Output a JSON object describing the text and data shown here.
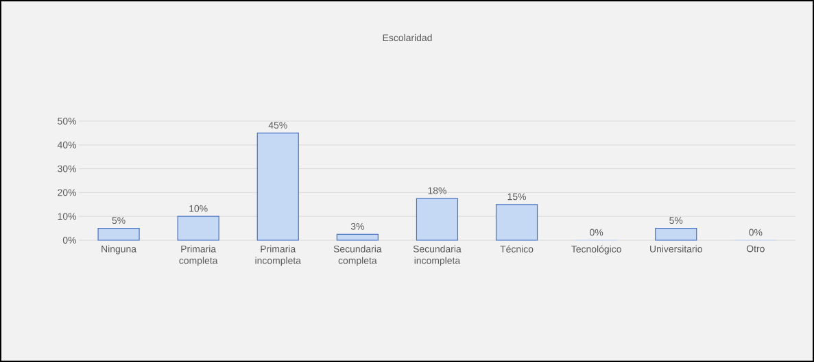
{
  "chart_data": {
    "type": "bar",
    "title": "Escolaridad",
    "categories": [
      "Ninguna",
      "Primaria completa",
      "Primaria incompleta",
      "Secundaria completa",
      "Secundaria incompleta",
      "Técnico",
      "Tecnológico",
      "Universitario",
      "Otro"
    ],
    "values": [
      5,
      10,
      45,
      2.5,
      17.5,
      15,
      0,
      5,
      0
    ],
    "value_labels": [
      "5%",
      "10%",
      "45%",
      "3%",
      "18%",
      "15%",
      "0%",
      "5%",
      "0%"
    ],
    "color": "#c5d9f5",
    "ylim": [
      0,
      50
    ],
    "yticks": [
      {
        "value": 0,
        "label": "0%"
      },
      {
        "value": 10,
        "label": "10%"
      },
      {
        "value": 20,
        "label": "20%"
      },
      {
        "value": 30,
        "label": "30%"
      },
      {
        "value": 40,
        "label": "40%"
      },
      {
        "value": 50,
        "label": "50%"
      }
    ],
    "grid": "y"
  }
}
